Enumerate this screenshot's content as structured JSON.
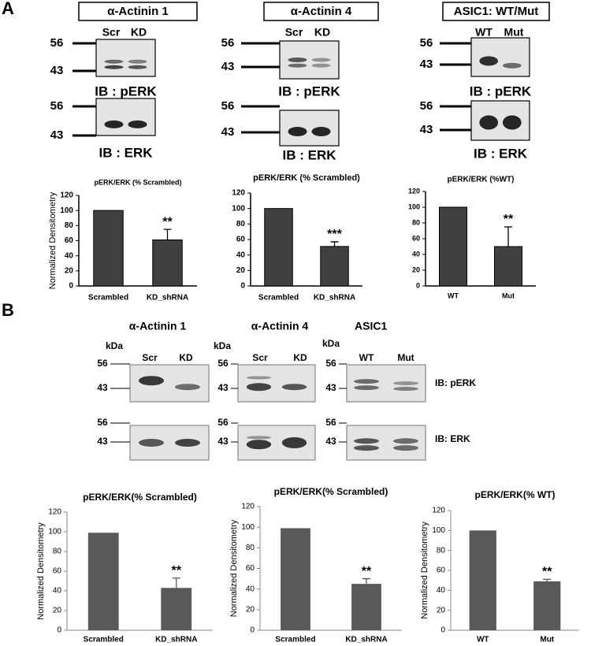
{
  "panel_a": {
    "label": "A",
    "columns": [
      {
        "title": "α-Actinin 1",
        "lanes": [
          "Scr",
          "KD"
        ],
        "markers": [
          "56",
          "43"
        ],
        "blots": [
          "IB : pERK",
          "IB : ERK"
        ]
      },
      {
        "title": "α-Actinin 4",
        "lanes": [
          "Scr",
          "KD"
        ],
        "markers": [
          "56",
          "43"
        ],
        "blots": [
          "IB : pERK",
          "IB : ERK"
        ]
      },
      {
        "title": "ASIC1: WT/Mut",
        "lanes": [
          "WT",
          "Mut"
        ],
        "markers": [
          "56",
          "43"
        ],
        "blots": [
          "IB : pERK",
          "IB : ERK"
        ]
      }
    ]
  },
  "panel_b": {
    "label": "B",
    "unit": "kDa",
    "blot_labels": [
      "IB: pERK",
      "IB:  ERK"
    ],
    "columns": [
      {
        "title": "α-Actinin 1",
        "lanes": [
          "Scr",
          "KD"
        ],
        "markers": [
          "56",
          "43"
        ]
      },
      {
        "title": "α-Actinin 4",
        "lanes": [
          "Scr",
          "KD"
        ],
        "markers": [
          "56",
          "43"
        ]
      },
      {
        "title": "ASIC1",
        "lanes": [
          "WT",
          "Mut"
        ],
        "markers": [
          "56",
          "43"
        ]
      }
    ]
  },
  "chart_data": [
    {
      "type": "bar",
      "title": "pERK/ERK (% Scrambled)",
      "y_label": "Normalized Densitometry",
      "categories": [
        "Scrambled",
        "KD_shRNA"
      ],
      "values": [
        100,
        61
      ],
      "errors": [
        0,
        14
      ],
      "annotations": [
        null,
        "**"
      ],
      "color": "#404040",
      "ylim": [
        0,
        120
      ],
      "yticks": [
        0,
        20,
        40,
        60,
        80,
        100,
        120
      ]
    },
    {
      "type": "bar",
      "title": "pERK/ERK (% Scrambled)",
      "categories": [
        "Scrambled",
        "KD_shRNA"
      ],
      "values": [
        100,
        51
      ],
      "errors": [
        0,
        6
      ],
      "annotations": [
        null,
        "***"
      ],
      "color": "#404040",
      "ylim": [
        0,
        120
      ],
      "yticks": [
        0,
        20,
        40,
        60,
        80,
        100,
        120
      ]
    },
    {
      "type": "bar",
      "title": "pERK/ERK (%WT)",
      "categories": [
        "WT",
        "Mut"
      ],
      "values": [
        100,
        50
      ],
      "errors": [
        0,
        25
      ],
      "annotations": [
        null,
        "**"
      ],
      "color": "#404040",
      "ylim": [
        0,
        120
      ],
      "yticks": [
        0,
        20,
        40,
        60,
        80,
        100,
        120
      ]
    },
    {
      "type": "bar",
      "title": "pERK/ERK(% Scrambled)",
      "y_label": "Normalized Densitometry",
      "categories": [
        "Scrambled",
        "KD_shRNA"
      ],
      "values": [
        99,
        43
      ],
      "errors": [
        0,
        10
      ],
      "annotations": [
        null,
        "**"
      ],
      "color": "#595959",
      "ylim": [
        0,
        120
      ],
      "yticks": [
        0,
        20,
        40,
        60,
        80,
        100,
        120
      ]
    },
    {
      "type": "bar",
      "title": "pERK/ERK(% Scrambled)",
      "y_label": "Normalized Densitometry",
      "categories": [
        "Scrambled",
        "KD_shRNA"
      ],
      "values": [
        99,
        45
      ],
      "errors": [
        0,
        5
      ],
      "annotations": [
        null,
        "**"
      ],
      "color": "#595959",
      "ylim": [
        0,
        120
      ],
      "yticks": [
        0,
        20,
        40,
        60,
        80,
        100,
        120
      ]
    },
    {
      "type": "bar",
      "title": "pERK/ERK(% WT)",
      "y_label": "Normalized Densitometry",
      "categories": [
        "WT",
        "Mut"
      ],
      "values": [
        100,
        49
      ],
      "errors": [
        0,
        2
      ],
      "annotations": [
        null,
        "**"
      ],
      "color": "#595959",
      "ylim": [
        0,
        120
      ],
      "yticks": [
        0,
        20,
        40,
        60,
        80,
        100,
        120
      ]
    }
  ]
}
